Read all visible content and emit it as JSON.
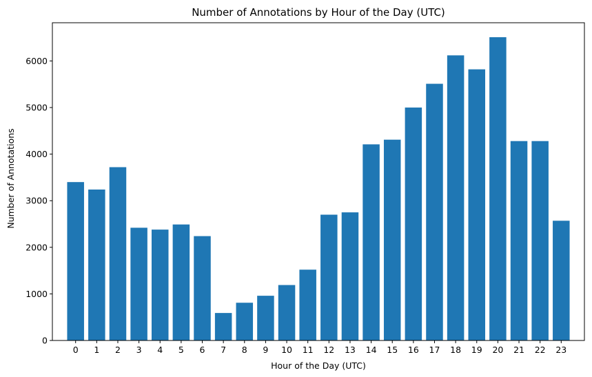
{
  "chart_data": {
    "type": "bar",
    "title": "Number of Annotations by Hour of the Day (UTC)",
    "xlabel": "Hour of the Day (UTC)",
    "ylabel": "Number of Annotations",
    "categories": [
      "0",
      "1",
      "2",
      "3",
      "4",
      "5",
      "6",
      "7",
      "8",
      "9",
      "10",
      "11",
      "12",
      "13",
      "14",
      "15",
      "16",
      "17",
      "18",
      "19",
      "20",
      "21",
      "22",
      "23"
    ],
    "values": [
      3400,
      3240,
      3720,
      2420,
      2380,
      2490,
      2240,
      590,
      810,
      960,
      1190,
      1520,
      2700,
      2750,
      4210,
      4310,
      5000,
      5510,
      6120,
      5820,
      6510,
      4280,
      4280,
      2570
    ],
    "ylim": [
      0,
      6820
    ],
    "yticks": [
      0,
      1000,
      2000,
      3000,
      4000,
      5000,
      6000
    ],
    "ytick_labels": [
      "0",
      "1000",
      "2000",
      "3000",
      "4000",
      "5000",
      "6000"
    ],
    "bar_color": "#1f77b4",
    "grid": false,
    "legend": "none"
  }
}
